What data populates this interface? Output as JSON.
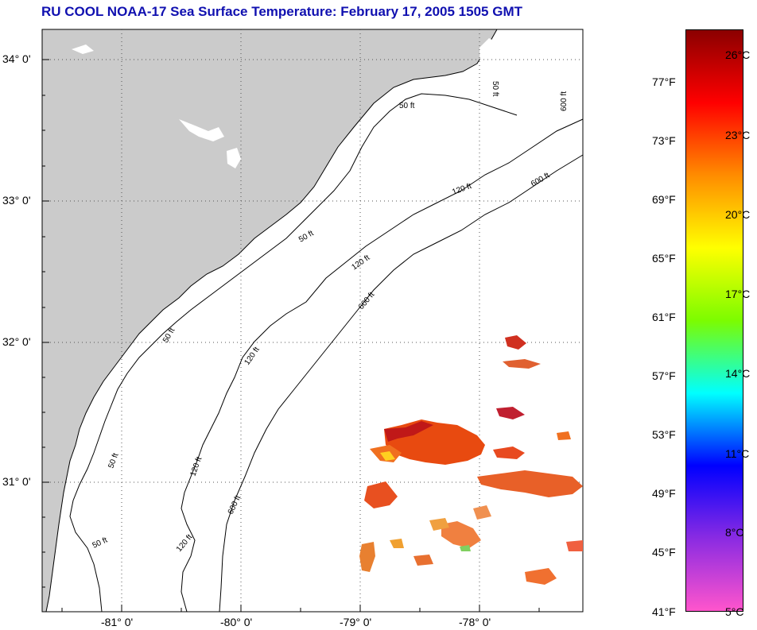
{
  "title": "RU COOL  NOAA-17  Sea Surface Temperature:  February 17, 2005 1505 GMT",
  "map": {
    "lat_labels": [
      "34° 0'",
      "33° 0'",
      "32° 0'",
      "31° 0'"
    ],
    "lon_labels": [
      "-81° 0'",
      "-80° 0'",
      "-79° 0'",
      "-78° 0'"
    ],
    "contours": {
      "c50": [
        "50 ft",
        "50 ft",
        "50 ft",
        "50 ft",
        "50 ft",
        "50 ft"
      ],
      "c120": [
        "120 ft",
        "120 ft",
        "120 ft",
        "120 ft",
        "120 ft"
      ],
      "c600": [
        "600 ft",
        "600 ft",
        "600 ft",
        "600 ft"
      ]
    },
    "colors": {
      "land": "#cbcbcb",
      "ocean": "#ffffff",
      "grid": "#555555"
    }
  },
  "colorbar": {
    "fahrenheit": [
      "77°F",
      "73°F",
      "69°F",
      "65°F",
      "61°F",
      "57°F",
      "53°F",
      "49°F",
      "45°F",
      "41°F"
    ],
    "celsius": [
      "26°C",
      "23°C",
      "20°C",
      "17°C",
      "14°C",
      "11°C",
      "8°C",
      "5°C"
    ],
    "gradient": [
      "#8b0000",
      "#ff0000",
      "#ff8c00",
      "#ffff00",
      "#7cfc00",
      "#00ffff",
      "#0000ff",
      "#8a2be2",
      "#ff55cc"
    ]
  }
}
